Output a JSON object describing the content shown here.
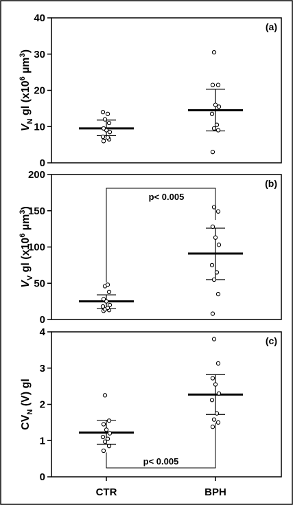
{
  "chart_data": [
    {
      "type": "scatter",
      "panel": "(a)",
      "ylabel": {
        "italic": "V",
        "sub": "N",
        "rest": " gl (x10",
        "sup": "6",
        "unit": " µm",
        "sup2": "3",
        "close": ")"
      },
      "ylim": [
        0,
        40
      ],
      "yticks": [
        0,
        10,
        20,
        30,
        40
      ],
      "categories": [
        "CTR",
        "BPH"
      ],
      "series": [
        {
          "values": [
            6.0,
            6.5,
            7.0,
            7.2,
            7.0,
            8.5,
            9.5,
            11.0,
            12.0,
            13.5,
            14.0,
            9.0
          ],
          "mean": 9.5,
          "sd_low": 7.5,
          "sd_high": 11.8
        },
        {
          "values": [
            3.0,
            9.0,
            9.5,
            10.5,
            13.5,
            15.5,
            16.0,
            21.5,
            21.5,
            30.5
          ],
          "mean": 14.5,
          "sd_low": 8.8,
          "sd_high": 20.3
        }
      ],
      "significance": null
    },
    {
      "type": "scatter",
      "panel": "(b)",
      "ylabel": {
        "italic": "V",
        "sub": "V",
        "rest": " gl (x10",
        "sup": "6",
        "unit": " µm",
        "sup2": "3",
        "close": ")"
      },
      "ylim": [
        0,
        200
      ],
      "yticks": [
        0,
        50,
        100,
        150,
        200
      ],
      "categories": [
        "CTR",
        "BPH"
      ],
      "series": [
        {
          "values": [
            12,
            13,
            14,
            16,
            18,
            20,
            25,
            28,
            38,
            46,
            48
          ],
          "mean": 25,
          "sd_low": 15,
          "sd_high": 34
        },
        {
          "values": [
            8,
            35,
            55,
            65,
            75,
            103,
            113,
            128,
            149,
            155
          ],
          "mean": 91,
          "sd_low": 55,
          "sd_high": 126
        }
      ],
      "significance": {
        "label": "p< 0.005",
        "position": "top"
      }
    },
    {
      "type": "scatter",
      "panel": "(c)",
      "ylabel": {
        "italic": "",
        "sub": "N",
        "rest": " (V) gl",
        "prefix": "CV",
        "sup": "",
        "unit": "",
        "sup2": "",
        "close": ""
      },
      "ylim": [
        0,
        4
      ],
      "yticks": [
        0,
        1,
        2,
        3,
        4
      ],
      "categories": [
        "CTR",
        "BPH"
      ],
      "series": [
        {
          "values": [
            0.72,
            0.85,
            0.97,
            1.05,
            1.1,
            1.2,
            1.3,
            1.45,
            1.55,
            2.25
          ],
          "mean": 1.22,
          "sd_low": 0.9,
          "sd_high": 1.56
        },
        {
          "values": [
            1.38,
            1.5,
            1.58,
            1.75,
            2.12,
            2.3,
            2.55,
            2.72,
            3.13,
            3.8
          ],
          "mean": 2.27,
          "sd_low": 1.72,
          "sd_high": 2.82
        }
      ],
      "significance": {
        "label": "p< 0.005",
        "position": "bottom"
      }
    }
  ]
}
